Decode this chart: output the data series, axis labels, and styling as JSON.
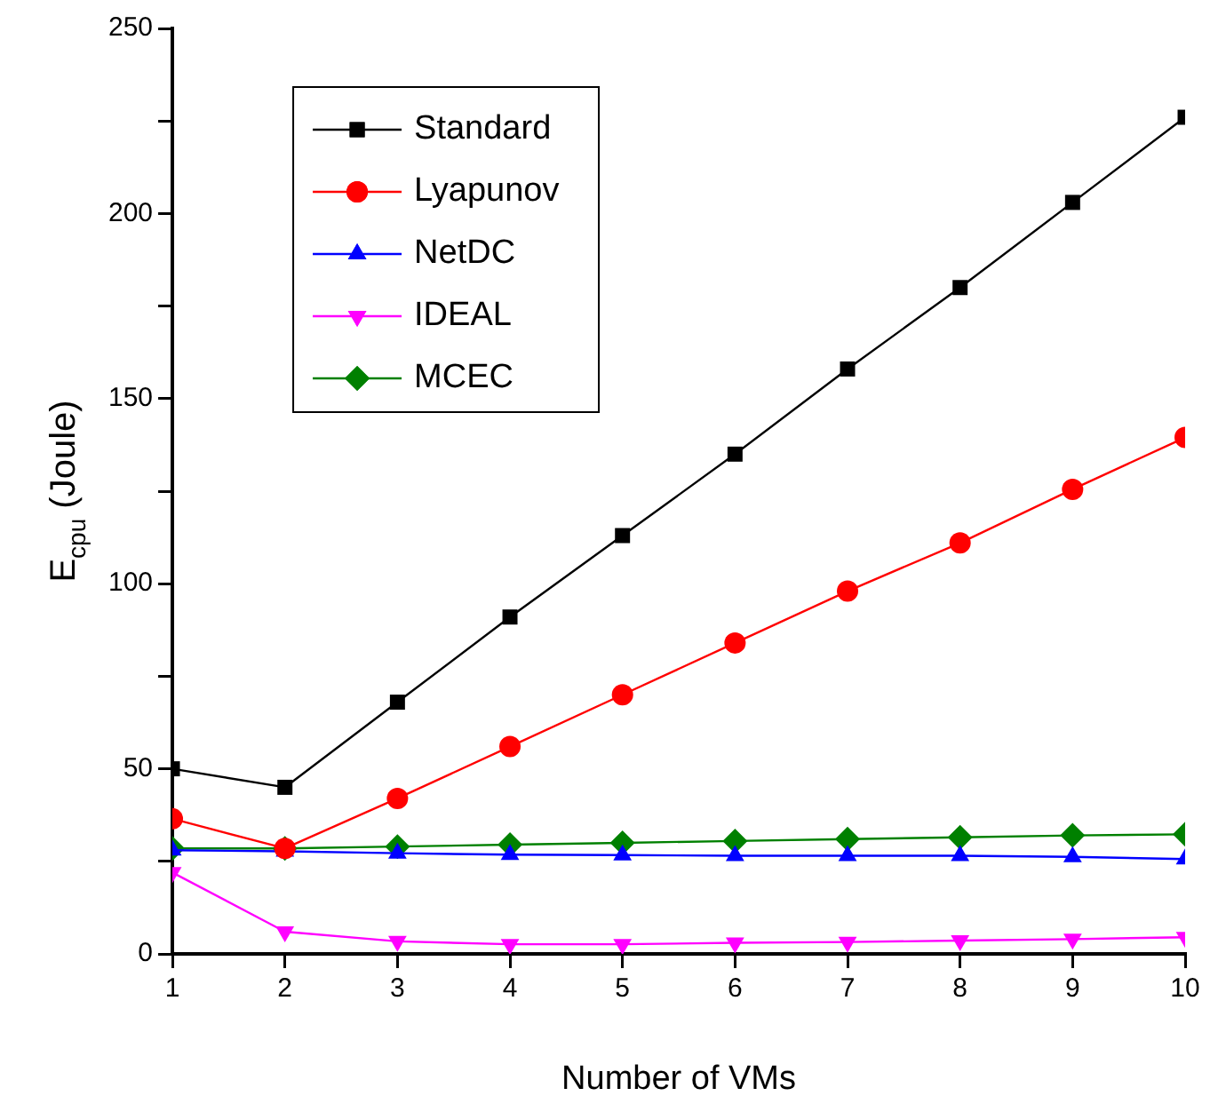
{
  "chart_data": {
    "type": "line",
    "xlabel": "Number of VMs",
    "ylabel": "E$_{cpu}$ (Joule)",
    "x": [
      1,
      2,
      3,
      4,
      5,
      6,
      7,
      8,
      9,
      10
    ],
    "series": [
      {
        "name": "Standard",
        "color": "#000000",
        "marker": "square",
        "values": [
          50,
          45,
          68,
          91,
          113,
          135,
          158,
          180,
          203,
          226
        ]
      },
      {
        "name": "Lyapunov",
        "color": "#ff0000",
        "marker": "circle",
        "values": [
          36.5,
          28.5,
          42,
          56,
          70,
          84,
          98,
          111,
          125.5,
          139.5
        ]
      },
      {
        "name": "NetDC",
        "color": "#0000ff",
        "marker": "triangle",
        "values": [
          28,
          27.7,
          27.2,
          26.8,
          26.7,
          26.5,
          26.5,
          26.5,
          26.2,
          25.6
        ]
      },
      {
        "name": "IDEAL",
        "color": "#ff00ff",
        "marker": "triangle-down",
        "values": [
          22,
          6,
          3.4,
          2.6,
          2.6,
          3,
          3.2,
          3.6,
          4,
          4.5
        ]
      },
      {
        "name": "MCEC",
        "color": "#008000",
        "marker": "diamond",
        "values": [
          28.5,
          28.5,
          29,
          29.5,
          30,
          30.5,
          31,
          31.5,
          32,
          32.3
        ]
      }
    ],
    "xlim": [
      1,
      10
    ],
    "xticks": [
      1,
      2,
      3,
      4,
      5,
      6,
      7,
      8,
      9,
      10
    ],
    "ylim": [
      0,
      250
    ],
    "yticks": [
      0,
      {
        "value": 25,
        "label": null
      },
      50,
      {
        "value": 75,
        "label": null
      },
      100,
      {
        "value": 125,
        "label": null
      },
      150,
      {
        "value": 175,
        "label": null
      },
      200,
      {
        "value": 225,
        "label": null
      },
      250
    ],
    "grid": false,
    "legend": "top left",
    "line_style": "solid"
  }
}
